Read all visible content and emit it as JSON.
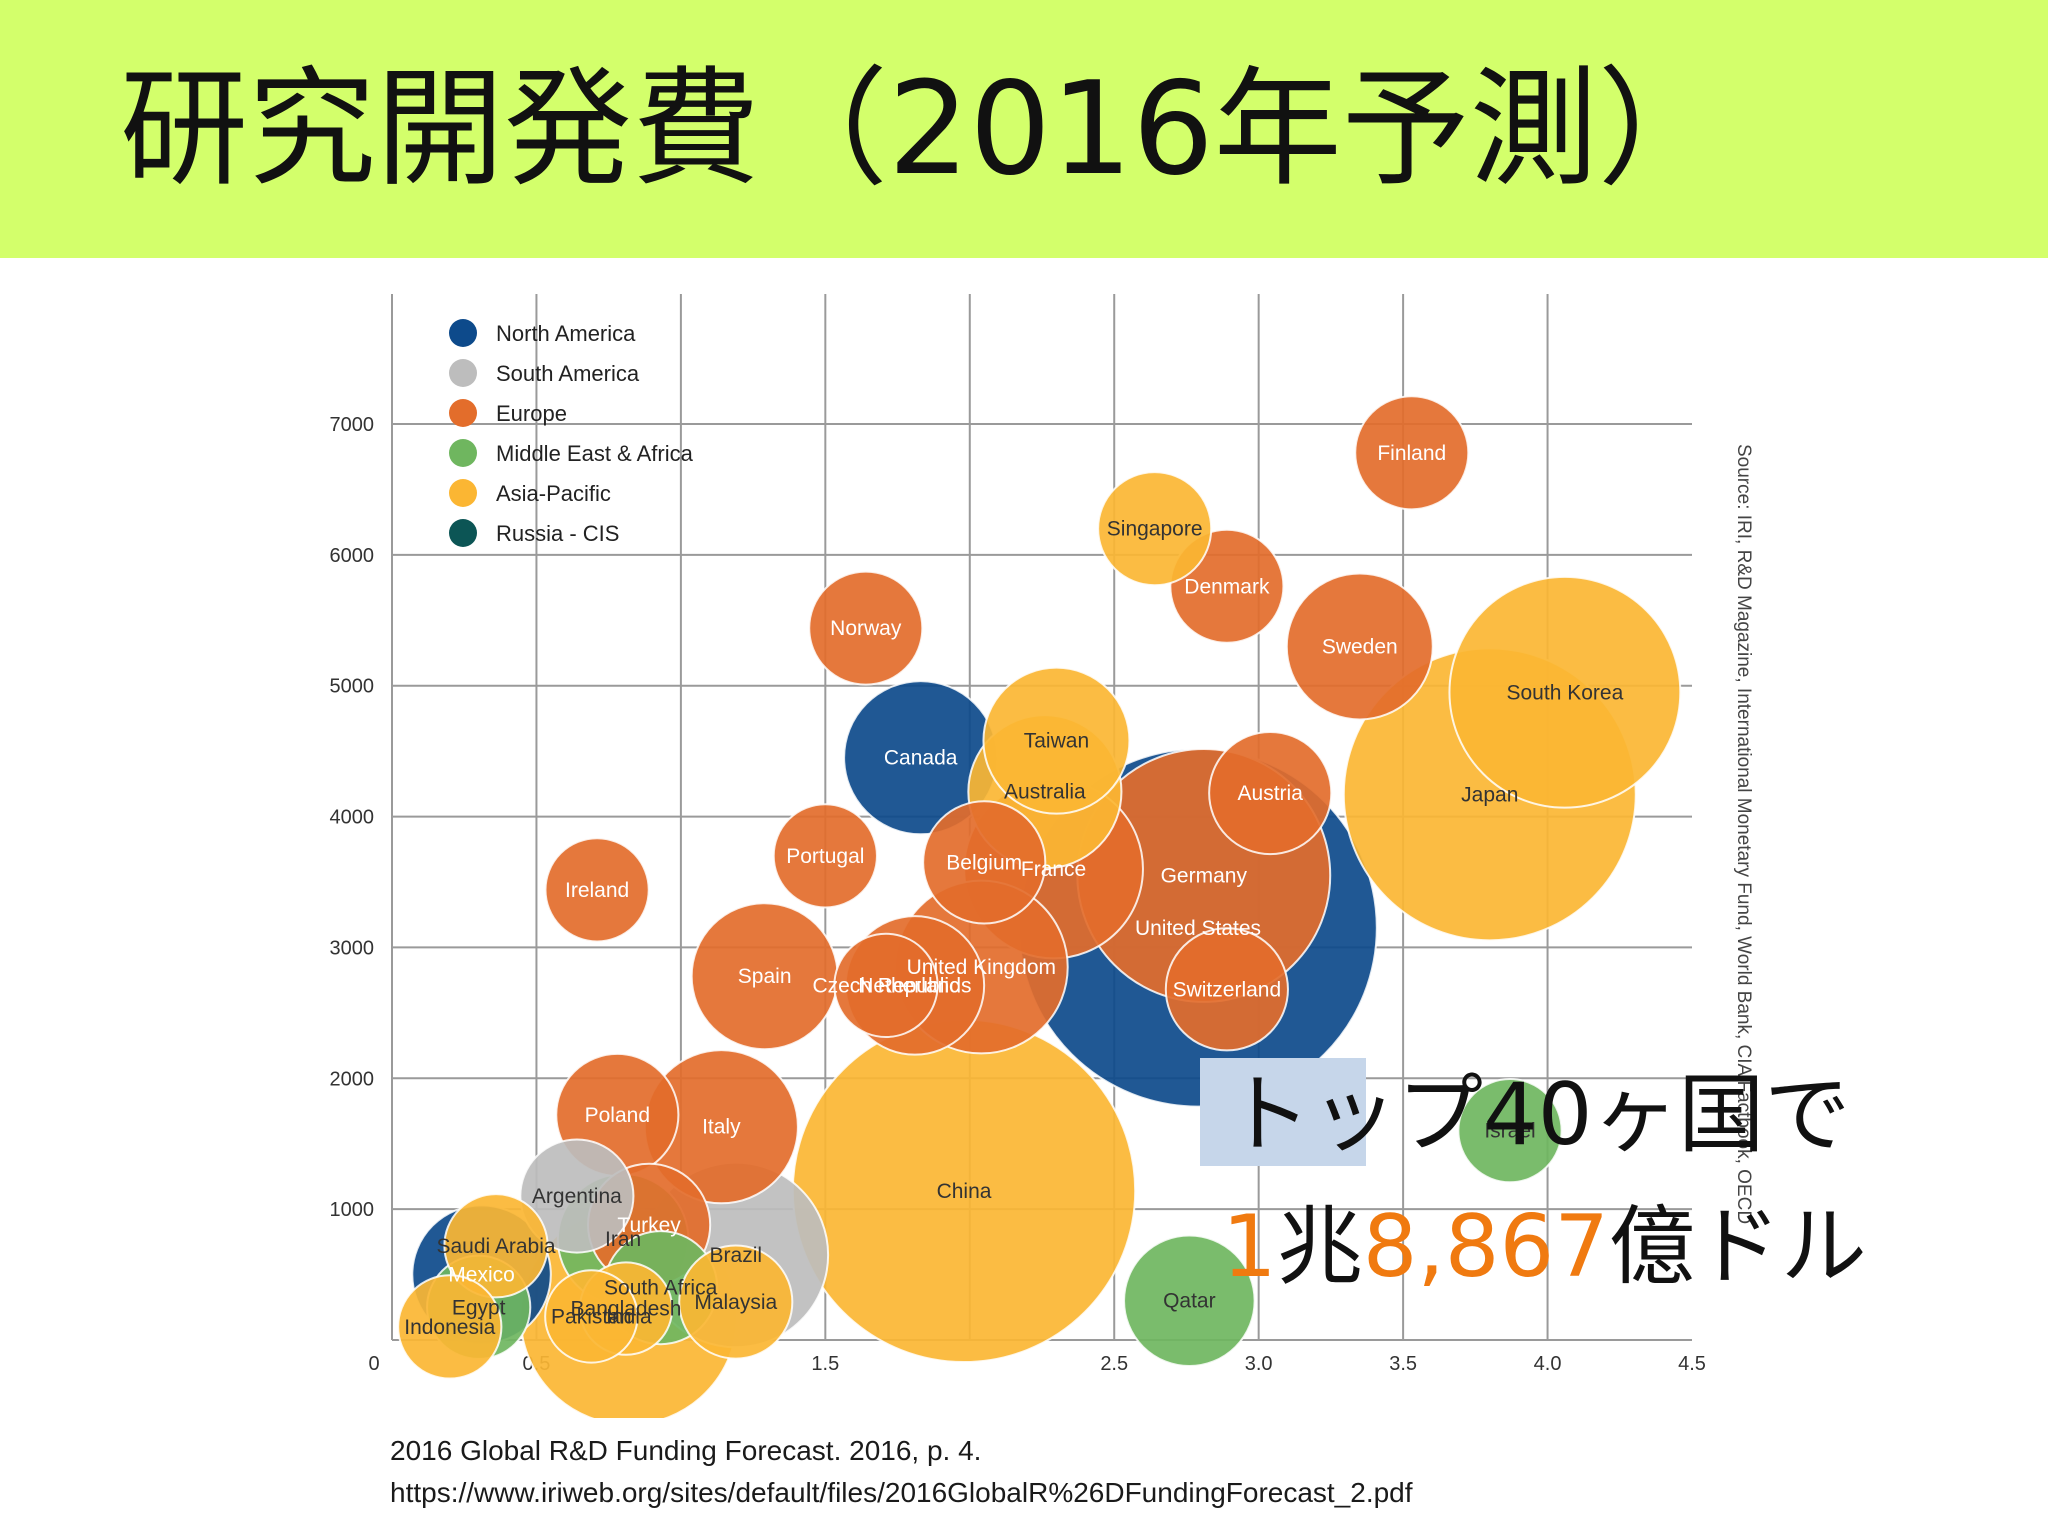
{
  "slide": {
    "title": "研究開発費（2016年予測）",
    "callout": {
      "line1": "トップ40ヶ国で",
      "amount_num1": "1",
      "amount_unit1": "兆",
      "amount_num2": "8,867",
      "amount_unit2": "億ドル"
    },
    "reference": {
      "line1": "2016 Global R&D Funding Forecast. 2016, p. 4.",
      "line2": "https://www.iriweb.org/sites/default/files/2016GlobalR%26DFundingForecast_2.pdf"
    }
  },
  "chart_data": {
    "type": "scatter",
    "title": "",
    "xlabel": "",
    "ylabel": "",
    "xlim": [
      0,
      4.5
    ],
    "ylim": [
      0,
      7000
    ],
    "x_ticks": [
      "0",
      "0.5",
      "1.5",
      "2.5",
      "3.0",
      "3.5",
      "4.0",
      "4.5"
    ],
    "x_tick_values": [
      0,
      0.5,
      1.5,
      2.5,
      3.0,
      3.5,
      4.0,
      4.5
    ],
    "y_ticks": [
      "1000",
      "2000",
      "3000",
      "4000",
      "5000",
      "6000",
      "7000"
    ],
    "y_tick_values": [
      1000,
      2000,
      3000,
      4000,
      5000,
      6000,
      7000
    ],
    "source_note": "Source: IRI, R&D Magazine, International Monetary Fund, World Bank, CIA Factbook, OECD",
    "legend_position": "top-left",
    "regions": [
      {
        "name": "North America",
        "color": "#0d4a8b"
      },
      {
        "name": "South America",
        "color": "#bdbdbd"
      },
      {
        "name": "Europe",
        "color": "#e36d2b"
      },
      {
        "name": "Middle East & Africa",
        "color": "#6fb65f"
      },
      {
        "name": "Asia-Pacific",
        "color": "#fbb633"
      },
      {
        "name": "Russia - CIS",
        "color": "#0c5555"
      }
    ],
    "points": [
      {
        "label": "United States",
        "region": "North America",
        "x": 2.79,
        "y": 3150,
        "size": 6.0
      },
      {
        "label": "Canada",
        "region": "North America",
        "x": 1.83,
        "y": 4450,
        "size": 1.1
      },
      {
        "label": "Mexico",
        "region": "North America",
        "x": 0.31,
        "y": 500,
        "size": 0.9
      },
      {
        "label": "Brazil",
        "region": "South America",
        "x": 1.19,
        "y": 650,
        "size": 1.6
      },
      {
        "label": "Argentina",
        "region": "South America",
        "x": 0.64,
        "y": 1100,
        "size": 0.6
      },
      {
        "label": "Finland",
        "region": "Europe",
        "x": 3.53,
        "y": 6780,
        "size": 0.6
      },
      {
        "label": "Denmark",
        "region": "Europe",
        "x": 2.89,
        "y": 5760,
        "size": 0.6
      },
      {
        "label": "Sweden",
        "region": "Europe",
        "x": 3.35,
        "y": 5300,
        "size": 1.0
      },
      {
        "label": "Norway",
        "region": "Europe",
        "x": 1.64,
        "y": 5440,
        "size": 0.6
      },
      {
        "label": "Austria",
        "region": "Europe",
        "x": 3.04,
        "y": 4180,
        "size": 0.7
      },
      {
        "label": "Germany",
        "region": "Europe",
        "x": 2.81,
        "y": 3550,
        "size": 3.0
      },
      {
        "label": "Switzerland",
        "region": "Europe",
        "x": 2.89,
        "y": 2680,
        "size": 0.7
      },
      {
        "label": "France",
        "region": "Europe",
        "x": 2.29,
        "y": 3600,
        "size": 1.5
      },
      {
        "label": "Belgium",
        "region": "Europe",
        "x": 2.05,
        "y": 3650,
        "size": 0.7
      },
      {
        "label": "United Kingdom",
        "region": "Europe",
        "x": 2.04,
        "y": 2850,
        "size": 1.4
      },
      {
        "label": "Netherlands",
        "region": "Europe",
        "x": 1.81,
        "y": 2710,
        "size": 0.9
      },
      {
        "label": "Czech Republic",
        "region": "Europe",
        "x": 1.71,
        "y": 2710,
        "size": 0.5
      },
      {
        "label": "Portugal",
        "region": "Europe",
        "x": 1.5,
        "y": 3700,
        "size": 0.5
      },
      {
        "label": "Ireland",
        "region": "Europe",
        "x": 0.71,
        "y": 3440,
        "size": 0.5
      },
      {
        "label": "Spain",
        "region": "Europe",
        "x": 1.29,
        "y": 2780,
        "size": 1.0
      },
      {
        "label": "Italy",
        "region": "Europe",
        "x": 1.14,
        "y": 1630,
        "size": 1.1
      },
      {
        "label": "Poland",
        "region": "Europe",
        "x": 0.78,
        "y": 1720,
        "size": 0.7
      },
      {
        "label": "Turkey",
        "region": "Europe",
        "x": 0.89,
        "y": 880,
        "size": 0.7
      },
      {
        "label": "Israel",
        "region": "Middle East & Africa",
        "x": 3.87,
        "y": 1600,
        "size": 0.5
      },
      {
        "label": "Qatar",
        "region": "Middle East & Africa",
        "x": 2.76,
        "y": 300,
        "size": 0.8
      },
      {
        "label": "Iran",
        "region": "Middle East & Africa",
        "x": 0.8,
        "y": 770,
        "size": 0.8
      },
      {
        "label": "South Africa",
        "region": "Middle East & Africa",
        "x": 0.93,
        "y": 400,
        "size": 0.6
      },
      {
        "label": "Egypt",
        "region": "Middle East & Africa",
        "x": 0.3,
        "y": 250,
        "size": 0.5
      },
      {
        "label": "Japan",
        "region": "Asia-Pacific",
        "x": 3.8,
        "y": 4170,
        "size": 4.0
      },
      {
        "label": "South Korea",
        "region": "Asia-Pacific",
        "x": 4.06,
        "y": 4950,
        "size": 2.5
      },
      {
        "label": "Singapore",
        "region": "Asia-Pacific",
        "x": 2.64,
        "y": 6200,
        "size": 0.6
      },
      {
        "label": "Taiwan",
        "region": "Asia-Pacific",
        "x": 2.3,
        "y": 4580,
        "size": 1.0
      },
      {
        "label": "Australia",
        "region": "Asia-Pacific",
        "x": 2.26,
        "y": 4190,
        "size": 1.1
      },
      {
        "label": "China",
        "region": "Asia-Pacific",
        "x": 1.98,
        "y": 1140,
        "size": 5.5
      },
      {
        "label": "India",
        "region": "Asia-Pacific",
        "x": 0.82,
        "y": 180,
        "size": 2.2
      },
      {
        "label": "Malaysia",
        "region": "Asia-Pacific",
        "x": 1.19,
        "y": 290,
        "size": 0.6
      },
      {
        "label": "Saudi Arabia",
        "region": "Asia-Pacific",
        "x": 0.36,
        "y": 720,
        "size": 0.5
      },
      {
        "label": "Bangladesh",
        "region": "Asia-Pacific",
        "x": 0.81,
        "y": 240,
        "size": 0.4
      },
      {
        "label": "Pakistan",
        "region": "Asia-Pacific",
        "x": 0.69,
        "y": 180,
        "size": 0.4
      },
      {
        "label": "Indonesia",
        "region": "Asia-Pacific",
        "x": 0.2,
        "y": 100,
        "size": 0.5
      }
    ]
  }
}
